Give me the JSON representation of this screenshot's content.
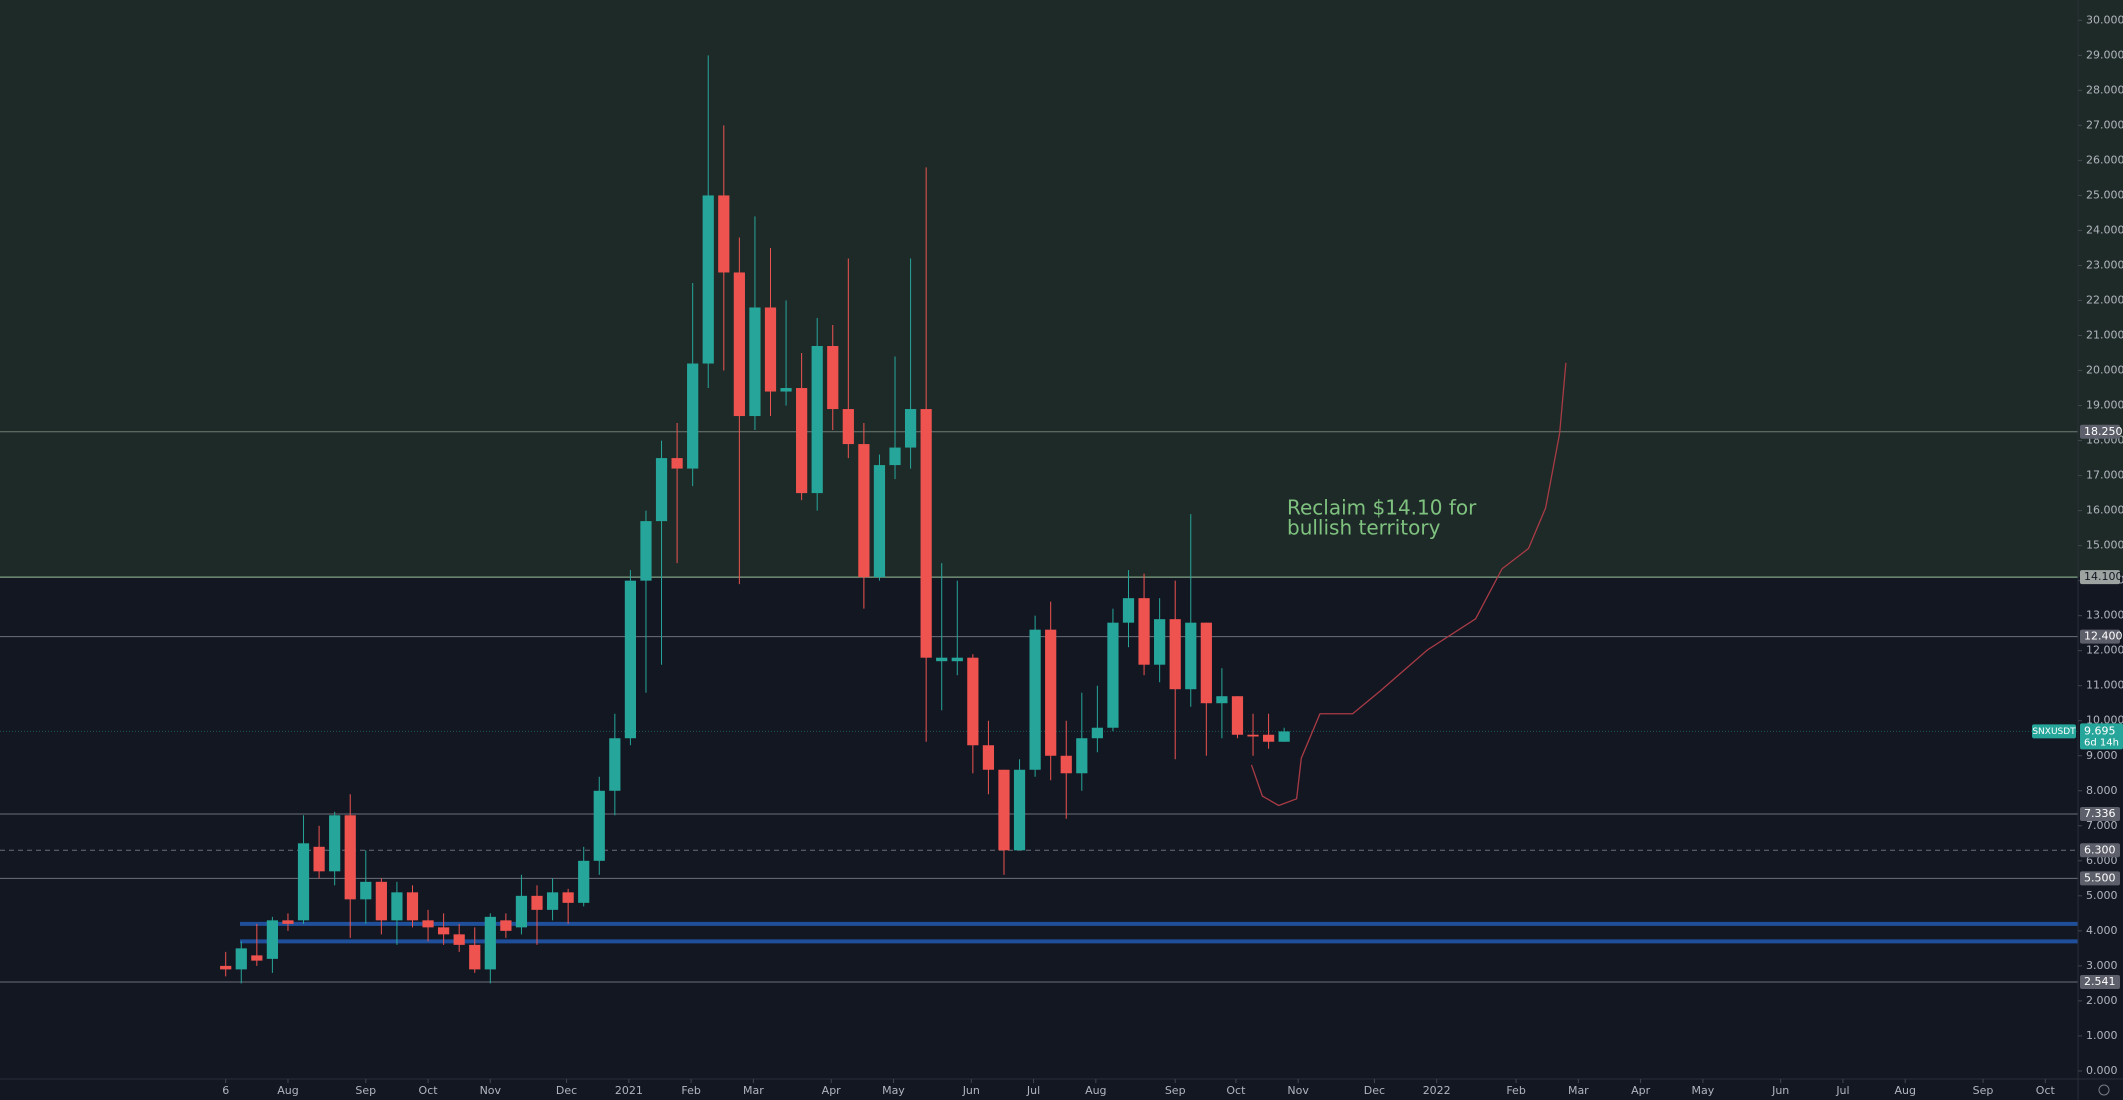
{
  "chart_data": {
    "type": "candlestick",
    "up_color": "#26a69a",
    "down_color": "#ef5350",
    "x": [
      0,
      1,
      2,
      3,
      4,
      5,
      6,
      7,
      8,
      9,
      10,
      11,
      12,
      13,
      14,
      15,
      16,
      17,
      18,
      19,
      20,
      21,
      22,
      23,
      24,
      25,
      26,
      27,
      28,
      29,
      30,
      31,
      32,
      33,
      34,
      35,
      36,
      37,
      38,
      39,
      40,
      41,
      42,
      43,
      44,
      45,
      46,
      47,
      48,
      49,
      50,
      51,
      52,
      53,
      54,
      55,
      56,
      57,
      58,
      59,
      60,
      61,
      62,
      63,
      64,
      65,
      66,
      67,
      68
    ],
    "open": [
      3.0,
      2.9,
      3.3,
      3.2,
      4.3,
      4.3,
      6.4,
      5.7,
      7.3,
      4.9,
      5.4,
      4.3,
      5.1,
      4.3,
      4.1,
      3.9,
      3.6,
      2.9,
      4.3,
      4.1,
      5.0,
      4.6,
      5.1,
      4.8,
      6.0,
      8.0,
      9.5,
      14.0,
      15.7,
      17.5,
      17.2,
      20.2,
      25.0,
      22.8,
      18.7,
      21.8,
      19.4,
      19.5,
      16.5,
      20.7,
      18.9,
      17.9,
      14.1,
      17.3,
      17.8,
      18.9,
      11.7,
      11.7,
      11.8,
      9.3,
      8.6,
      6.3,
      8.6,
      12.6,
      9.0,
      8.5,
      9.5,
      9.8,
      12.8,
      13.5,
      11.6,
      12.9,
      10.9,
      12.8,
      10.5,
      10.7,
      9.6,
      9.6,
      9.4
    ],
    "high": [
      3.4,
      3.7,
      4.2,
      4.4,
      4.5,
      7.3,
      7.0,
      7.4,
      7.9,
      6.3,
      5.5,
      5.4,
      5.3,
      4.6,
      4.5,
      4.2,
      4.1,
      4.5,
      4.5,
      5.6,
      5.3,
      5.5,
      5.2,
      6.4,
      8.4,
      10.2,
      14.3,
      16.0,
      18.0,
      18.5,
      22.5,
      29.0,
      27.0,
      23.8,
      24.4,
      23.5,
      22.0,
      20.5,
      21.5,
      21.3,
      23.2,
      18.5,
      17.6,
      20.4,
      23.2,
      25.8,
      14.5,
      14.0,
      11.9,
      10.0,
      8.6,
      8.9,
      13.0,
      13.4,
      10.0,
      10.8,
      11.0,
      13.2,
      14.3,
      14.2,
      13.5,
      14.0,
      15.9,
      12.8,
      11.5,
      10.7,
      10.2,
      10.2,
      9.8
    ],
    "low": [
      2.7,
      2.5,
      3.0,
      2.8,
      4.0,
      4.2,
      5.5,
      5.3,
      3.8,
      4.2,
      3.9,
      3.6,
      4.1,
      3.7,
      3.6,
      3.4,
      2.8,
      2.5,
      3.8,
      3.9,
      3.6,
      4.3,
      4.2,
      4.7,
      5.6,
      7.3,
      9.3,
      10.8,
      11.6,
      14.5,
      16.7,
      19.5,
      20.0,
      13.9,
      18.3,
      18.7,
      19.0,
      16.3,
      16.0,
      18.3,
      17.5,
      13.2,
      14.0,
      16.9,
      17.2,
      9.4,
      10.3,
      11.3,
      8.5,
      7.9,
      5.6,
      6.3,
      8.4,
      8.3,
      7.2,
      8.0,
      9.1,
      9.7,
      12.1,
      11.3,
      11.1,
      8.9,
      10.4,
      9.0,
      9.5,
      9.5,
      9.0,
      9.2,
      9.4
    ],
    "close": [
      2.9,
      3.5,
      3.15,
      4.3,
      4.2,
      6.5,
      5.7,
      7.3,
      4.9,
      5.4,
      4.3,
      5.1,
      4.3,
      4.1,
      3.9,
      3.6,
      2.9,
      4.4,
      4.0,
      5.0,
      4.6,
      5.1,
      4.8,
      6.0,
      8.0,
      9.5,
      14.0,
      15.7,
      17.5,
      17.2,
      20.2,
      25.0,
      22.8,
      18.7,
      21.8,
      19.4,
      19.5,
      16.5,
      20.7,
      18.9,
      17.9,
      14.1,
      17.3,
      17.8,
      18.9,
      11.8,
      11.8,
      11.8,
      9.3,
      8.6,
      6.3,
      8.6,
      12.6,
      9.0,
      8.5,
      9.5,
      9.8,
      12.8,
      13.5,
      11.6,
      12.9,
      10.9,
      12.8,
      10.5,
      10.7,
      9.6,
      9.55,
      9.4,
      9.695
    ],
    "xlim": [
      -14.5,
      119
    ],
    "xticks": [
      {
        "value": 0,
        "label": "6"
      },
      {
        "value": 4.0,
        "label": "Aug"
      },
      {
        "value": 9.0,
        "label": "Sep"
      },
      {
        "value": 13.0,
        "label": "Oct"
      },
      {
        "value": 17.0,
        "label": "Nov"
      },
      {
        "value": 21.9,
        "label": "Dec"
      },
      {
        "value": 25.9,
        "label": "2021"
      },
      {
        "value": 29.9,
        "label": "Feb"
      },
      {
        "value": 33.9,
        "label": "Mar"
      },
      {
        "value": 38.9,
        "label": "Apr"
      },
      {
        "value": 42.9,
        "label": "May"
      },
      {
        "value": 47.9,
        "label": "Jun"
      },
      {
        "value": 51.9,
        "label": "Jul"
      },
      {
        "value": 55.9,
        "label": "Aug"
      },
      {
        "value": 61.0,
        "label": "Sep"
      },
      {
        "value": 64.9,
        "label": "Oct"
      },
      {
        "value": 68.9,
        "label": "Nov"
      },
      {
        "value": 73.8,
        "label": "Dec"
      },
      {
        "value": 77.8,
        "label": "2022"
      },
      {
        "value": 82.9,
        "label": "Feb"
      },
      {
        "value": 86.9,
        "label": "Mar"
      },
      {
        "value": 90.9,
        "label": "Apr"
      },
      {
        "value": 94.9,
        "label": "May"
      },
      {
        "value": 99.9,
        "label": "Jun"
      },
      {
        "value": 103.9,
        "label": "Jul"
      },
      {
        "value": 107.9,
        "label": "Aug"
      },
      {
        "value": 112.9,
        "label": "Sep"
      },
      {
        "value": 116.9,
        "label": "Oct"
      }
    ],
    "ylim": [
      -0.23,
      30.58
    ],
    "yticks": [
      {
        "value": 0,
        "label": "0.000"
      },
      {
        "value": 1,
        "label": "1.000"
      },
      {
        "value": 2,
        "label": "2.000"
      },
      {
        "value": 3,
        "label": "3.000"
      },
      {
        "value": 4,
        "label": "4.000"
      },
      {
        "value": 5,
        "label": "5.000"
      },
      {
        "value": 6,
        "label": "6.000"
      },
      {
        "value": 7,
        "label": "7.000"
      },
      {
        "value": 8,
        "label": "8.000"
      },
      {
        "value": 9,
        "label": "9.000"
      },
      {
        "value": 10,
        "label": "10.000"
      },
      {
        "value": 11,
        "label": "11.000"
      },
      {
        "value": 12,
        "label": "12.000"
      },
      {
        "value": 13,
        "label": "13.000"
      },
      {
        "value": 14,
        "label": "14.000"
      },
      {
        "value": 15,
        "label": "15.000"
      },
      {
        "value": 16,
        "label": "16.000"
      },
      {
        "value": 17,
        "label": "17.000"
      },
      {
        "value": 18,
        "label": "18.000"
      },
      {
        "value": 19,
        "label": "19.000"
      },
      {
        "value": 20,
        "label": "20.000"
      },
      {
        "value": 21,
        "label": "21.000"
      },
      {
        "value": 22,
        "label": "22.000"
      },
      {
        "value": 23,
        "label": "23.000"
      },
      {
        "value": 24,
        "label": "24.000"
      },
      {
        "value": 25,
        "label": "25.000"
      },
      {
        "value": 26,
        "label": "26.000"
      },
      {
        "value": 27,
        "label": "27.000"
      },
      {
        "value": 28,
        "label": "28.000"
      },
      {
        "value": 29,
        "label": "29.000"
      },
      {
        "value": 30,
        "label": "30.000"
      }
    ],
    "levels": [
      {
        "value": 18.25,
        "label": "18.250",
        "color": "#6f7a72"
      },
      {
        "value": 14.1,
        "label": "14.100",
        "color": "#9cc59c",
        "shade_above": "#1e2a28"
      },
      {
        "value": 12.4,
        "label": "12.400",
        "color": "#6b6f7a"
      },
      {
        "value": 7.336,
        "label": "7.336",
        "color": "#6b6f7a"
      },
      {
        "value": 6.3,
        "label": "6.300",
        "color": "#6b6f7a",
        "style": "dashed"
      },
      {
        "value": 5.5,
        "label": "5.500",
        "color": "#6b6f7a"
      },
      {
        "value": 2.541,
        "label": "2.541",
        "color": "#6b6f7a"
      }
    ],
    "support_lines": {
      "color": "#1f4f9a",
      "values": [
        4.2,
        3.7
      ]
    },
    "last_price": {
      "value": 9.695,
      "label": "9.695"
    },
    "symbol": "SNXUSDT",
    "countdown": "6d 14h",
    "projection": {
      "color": "#a83b45",
      "x": [
        65.9,
        66.6,
        67.65,
        68.8,
        69.1,
        70.3,
        72.4,
        74.2,
        77.2,
        80.3,
        82.0,
        83.7,
        84.8,
        85.7,
        86.1
      ],
      "y": [
        8.74,
        7.85,
        7.58,
        7.77,
        8.93,
        10.2,
        10.2,
        10.86,
        12.02,
        12.91,
        14.34,
        14.92,
        16.08,
        18.21,
        20.22
      ]
    },
    "annotation": {
      "lines": [
        "Reclaim $14.10 for",
        "bullish territory"
      ],
      "color": "#7fc27f"
    }
  }
}
